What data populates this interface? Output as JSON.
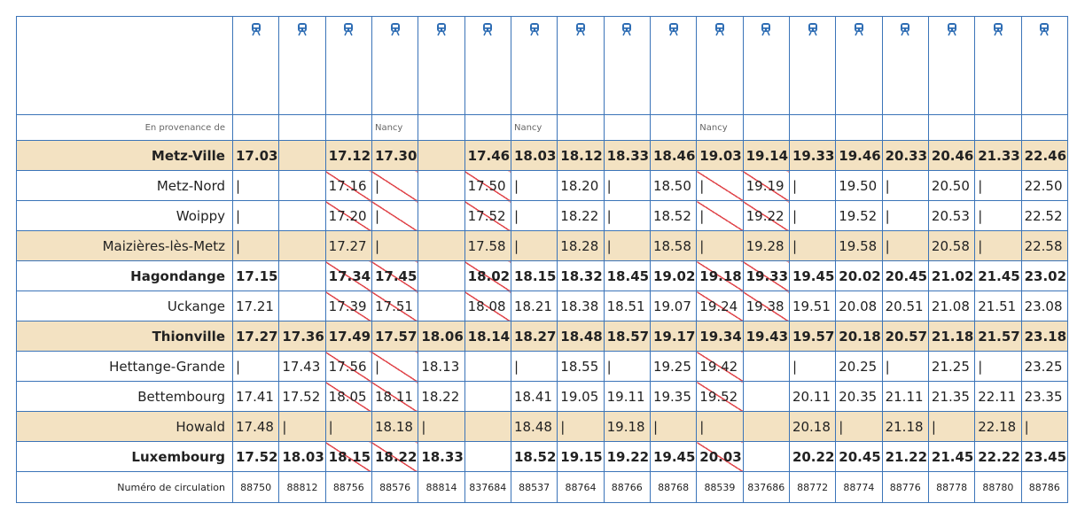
{
  "origin_label": "En provenance de",
  "number_label": "Numéro de circulation",
  "trains": [
    {
      "number": "88750",
      "origin": null,
      "cancelled": false
    },
    {
      "number": "88812",
      "origin": null,
      "cancelled": false
    },
    {
      "number": "88756",
      "origin": null,
      "cancelled": true
    },
    {
      "number": "88576",
      "origin": "Nancy",
      "cancelled": true
    },
    {
      "number": "88814",
      "origin": null,
      "cancelled": false
    },
    {
      "number": "837684",
      "origin": null,
      "cancelled": true
    },
    {
      "number": "88537",
      "origin": "Nancy",
      "cancelled": false
    },
    {
      "number": "88764",
      "origin": null,
      "cancelled": false
    },
    {
      "number": "88766",
      "origin": null,
      "cancelled": false
    },
    {
      "number": "88768",
      "origin": null,
      "cancelled": false
    },
    {
      "number": "88539",
      "origin": "Nancy",
      "cancelled": true
    },
    {
      "number": "837686",
      "origin": null,
      "cancelled": true
    },
    {
      "number": "88772",
      "origin": null,
      "cancelled": false
    },
    {
      "number": "88774",
      "origin": null,
      "cancelled": false
    },
    {
      "number": "88776",
      "origin": null,
      "cancelled": false
    },
    {
      "number": "88778",
      "origin": null,
      "cancelled": false
    },
    {
      "number": "88780",
      "origin": null,
      "cancelled": false
    },
    {
      "number": "88786",
      "origin": null,
      "cancelled": false
    }
  ],
  "stations": [
    {
      "name": "Metz-Ville",
      "bold": true,
      "shaded": true,
      "times": [
        "17.03",
        null,
        "17.12",
        "17.30",
        null,
        "17.46",
        "18.03",
        "18.12",
        "18.33",
        "18.46",
        "19.03",
        "19.14",
        "19.33",
        "19.46",
        "20.33",
        "20.46",
        "21.33",
        "22.46"
      ]
    },
    {
      "name": "Metz-Nord",
      "bold": false,
      "shaded": false,
      "times": [
        "|",
        null,
        "17.16",
        "|",
        null,
        "17.50",
        "|",
        "18.20",
        "|",
        "18.50",
        "|",
        "19.19",
        "|",
        "19.50",
        "|",
        "20.50",
        "|",
        "22.50"
      ]
    },
    {
      "name": "Woippy",
      "bold": false,
      "shaded": false,
      "times": [
        "|",
        null,
        "17.20",
        "|",
        null,
        "17.52",
        "|",
        "18.22",
        "|",
        "18.52",
        "|",
        "19.22",
        "|",
        "19.52",
        "|",
        "20.53",
        "|",
        "22.52"
      ]
    },
    {
      "name": "Maizières-lès-Metz",
      "bold": false,
      "shaded": true,
      "times": [
        "|",
        null,
        "17.27",
        "|",
        null,
        "17.58",
        "|",
        "18.28",
        "|",
        "18.58",
        "|",
        "19.28",
        "|",
        "19.58",
        "|",
        "20.58",
        "|",
        "22.58"
      ]
    },
    {
      "name": "Hagondange",
      "bold": true,
      "shaded": false,
      "times": [
        "17.15",
        null,
        "17.34",
        "17.45",
        null,
        "18.02",
        "18.15",
        "18.32",
        "18.45",
        "19.02",
        "19.18",
        "19.33",
        "19.45",
        "20.02",
        "20.45",
        "21.02",
        "21.45",
        "23.02"
      ]
    },
    {
      "name": "Uckange",
      "bold": false,
      "shaded": false,
      "times": [
        "17.21",
        null,
        "17.39",
        "17.51",
        null,
        "18.08",
        "18.21",
        "18.38",
        "18.51",
        "19.07",
        "19.24",
        "19.38",
        "19.51",
        "20.08",
        "20.51",
        "21.08",
        "21.51",
        "23.08"
      ]
    },
    {
      "name": "Thionville",
      "bold": true,
      "shaded": true,
      "times": [
        "17.27",
        "17.36",
        "17.49",
        "17.57",
        "18.06",
        "18.14",
        "18.27",
        "18.48",
        "18.57",
        "19.17",
        "19.34",
        "19.43",
        "19.57",
        "20.18",
        "20.57",
        "21.18",
        "21.57",
        "23.18"
      ]
    },
    {
      "name": "Hettange-Grande",
      "bold": false,
      "shaded": false,
      "times": [
        "|",
        "17.43",
        "17.56",
        "|",
        "18.13",
        null,
        "|",
        "18.55",
        "|",
        "19.25",
        "19.42",
        null,
        "|",
        "20.25",
        "|",
        "21.25",
        "|",
        "23.25"
      ]
    },
    {
      "name": "Bettembourg",
      "bold": false,
      "shaded": false,
      "times": [
        "17.41",
        "17.52",
        "18.05",
        "18.11",
        "18.22",
        null,
        "18.41",
        "19.05",
        "19.11",
        "19.35",
        "19.52",
        null,
        "20.11",
        "20.35",
        "21.11",
        "21.35",
        "22.11",
        "23.35"
      ]
    },
    {
      "name": "Howald",
      "bold": false,
      "shaded": true,
      "times": [
        "17.48",
        "|",
        "|",
        "18.18",
        "|",
        null,
        "18.48",
        "|",
        "19.18",
        "|",
        "|",
        null,
        "20.18",
        "|",
        "21.18",
        "|",
        "22.18",
        "|"
      ]
    },
    {
      "name": "Luxembourg",
      "bold": true,
      "shaded": false,
      "times": [
        "17.52",
        "18.03",
        "18.15",
        "18.22",
        "18.33",
        null,
        "18.52",
        "19.15",
        "19.22",
        "19.45",
        "20.03",
        null,
        "20.22",
        "20.45",
        "21.22",
        "21.45",
        "22.22",
        "23.45"
      ]
    }
  ]
}
